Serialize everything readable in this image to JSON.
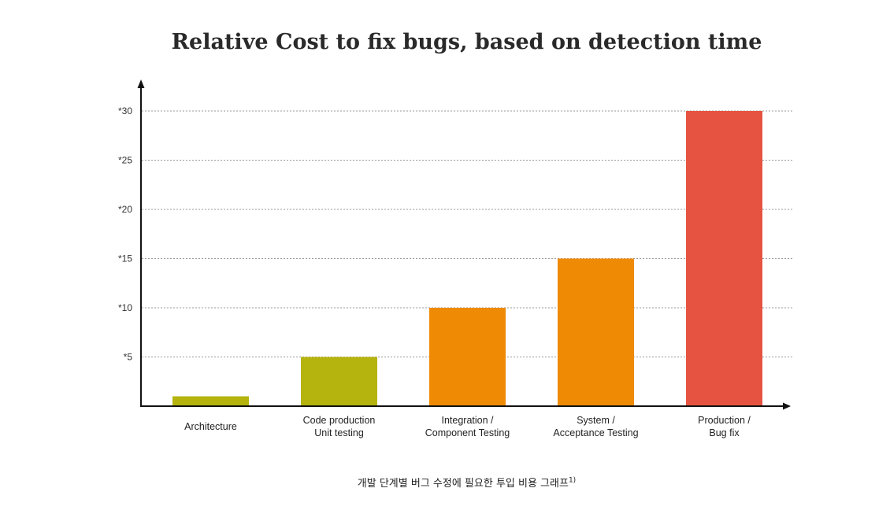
{
  "chart_data": {
    "type": "bar",
    "title": "Relative Cost to fix bugs, based on detection time",
    "categories": [
      [
        "Architecture"
      ],
      [
        "Code production",
        "Unit testing"
      ],
      [
        "Integration /",
        "Component Testing"
      ],
      [
        "System /",
        "Acceptance Testing"
      ],
      [
        "Production /",
        "Bug fix"
      ]
    ],
    "values": [
      1,
      5,
      10,
      15,
      30
    ],
    "colors": [
      "#b5b30d",
      "#b5b30d",
      "#ef8a05",
      "#ef8a05",
      "#e65340"
    ],
    "yticks": [
      5,
      10,
      15,
      20,
      25,
      30
    ],
    "ytick_labels": [
      "*5",
      "*10",
      "*15",
      "*20",
      "*25",
      "*30"
    ],
    "ylim": [
      0,
      30
    ],
    "grid": true,
    "xlabel": "",
    "ylabel": ""
  },
  "caption": {
    "text": "개발 단계별 버그 수정에 필요한 투입 비용 그래프",
    "footnote": "1)"
  }
}
